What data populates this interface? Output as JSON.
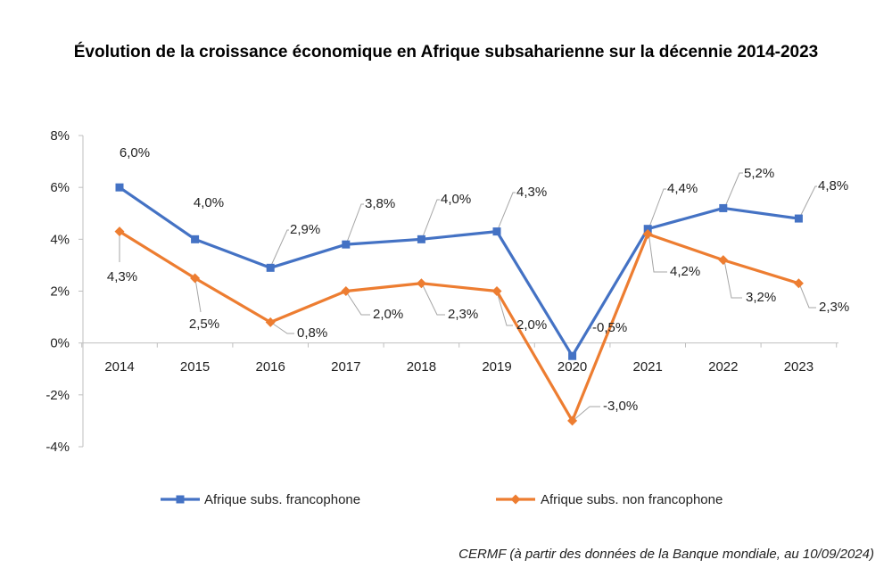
{
  "chart_data": {
    "type": "line",
    "title": "Évolution de la croissance économique en Afrique subsaharienne sur la décennie 2014-2023",
    "xlabel": "",
    "ylabel": "",
    "categories": [
      "2014",
      "2015",
      "2016",
      "2017",
      "2018",
      "2019",
      "2020",
      "2021",
      "2022",
      "2023"
    ],
    "ylim": [
      -4,
      8
    ],
    "yticks": [
      8,
      6,
      4,
      2,
      0,
      -2,
      -4
    ],
    "ytick_labels": [
      "8%",
      "6%",
      "4%",
      "2%",
      "0%",
      "-2%",
      "-4%"
    ],
    "grid": false,
    "legend_position": "bottom",
    "series": [
      {
        "name": "Afrique subs. francophone",
        "color": "#4472C4",
        "marker": "square",
        "values": [
          6.0,
          4.0,
          2.9,
          3.8,
          4.0,
          4.3,
          -0.5,
          4.4,
          5.2,
          4.8
        ],
        "labels": [
          "6,0%",
          "4,0%",
          "2,9%",
          "3,8%",
          "4,0%",
          "4,3%",
          "-0,5%",
          "4,4%",
          "5,2%",
          "4,8%"
        ]
      },
      {
        "name": "Afrique subs. non francophone",
        "color": "#ED7D31",
        "marker": "diamond",
        "values": [
          4.3,
          2.5,
          0.8,
          2.0,
          2.3,
          2.0,
          -3.0,
          4.2,
          3.2,
          2.3
        ],
        "labels": [
          "4,3%",
          "2,5%",
          "0,8%",
          "2,0%",
          "2,3%",
          "2,0%",
          "-3,0%",
          "4,2%",
          "3,2%",
          "2,3%"
        ]
      }
    ]
  },
  "source_note": "CERMF (à partir des données de la Banque mondiale, au 10/09/2024)"
}
